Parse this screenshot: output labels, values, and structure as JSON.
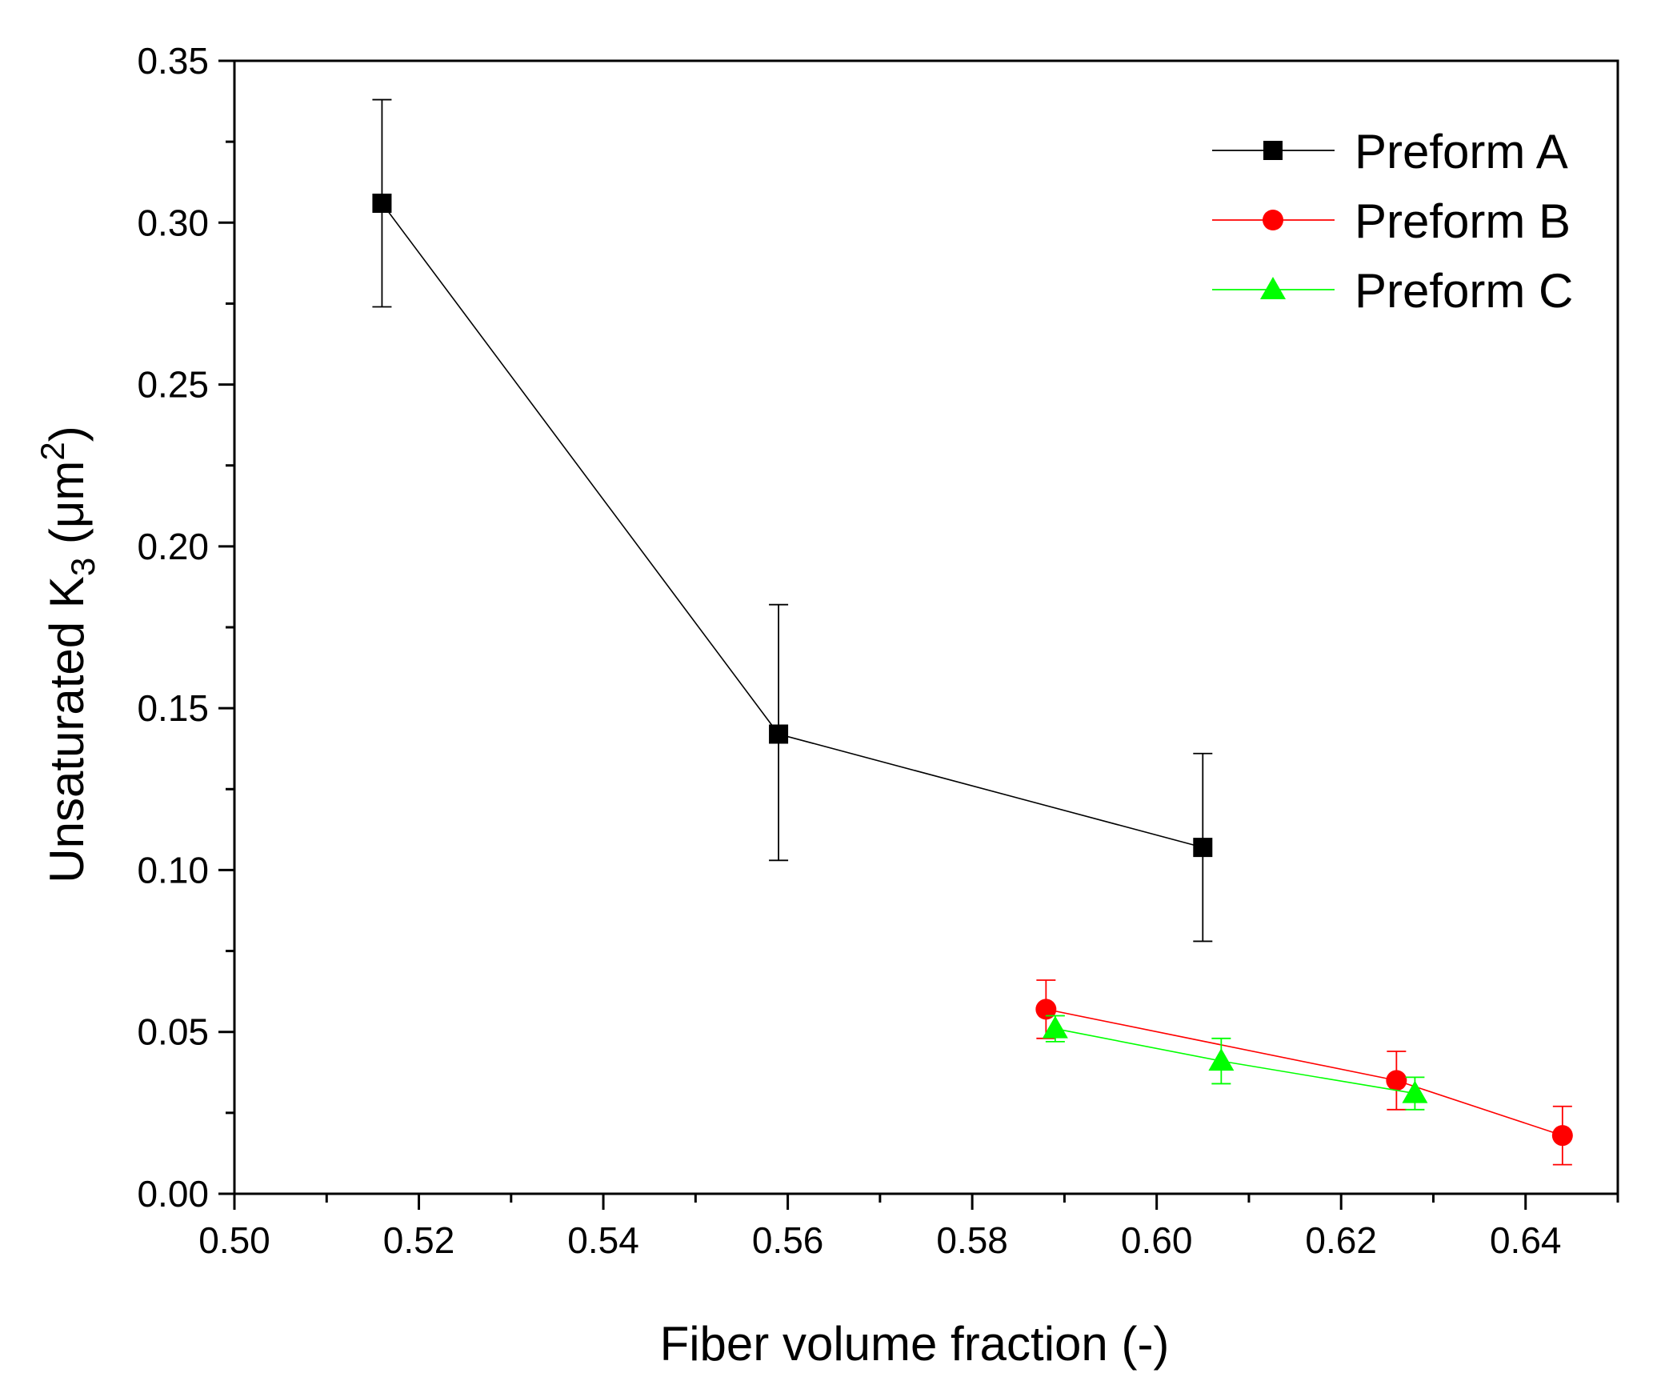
{
  "chart_data": {
    "type": "scatter",
    "title": "",
    "xlabel": "Fiber volume fraction (-)",
    "ylabel_main": "Unsaturated K",
    "ylabel_subscript": "3",
    "ylabel_unit_open": " (μm",
    "ylabel_unit_superscript": "2",
    "ylabel_unit_close": ")",
    "xlim": [
      0.5,
      0.65
    ],
    "ylim": [
      0.0,
      0.35
    ],
    "xticks_major": [
      "0.50",
      "0.52",
      "0.54",
      "0.56",
      "0.58",
      "0.60",
      "0.62",
      "0.64"
    ],
    "yticks_major": [
      "0.00",
      "0.05",
      "0.10",
      "0.15",
      "0.20",
      "0.25",
      "0.30",
      "0.35"
    ],
    "grid": false,
    "legend_position": "top-right",
    "series": [
      {
        "name": "Preform A",
        "color": "#000000",
        "marker": "square",
        "x": [
          0.516,
          0.559,
          0.605
        ],
        "y": [
          0.306,
          0.142,
          0.107
        ],
        "yerr_low": [
          0.274,
          0.103,
          0.078
        ],
        "yerr_high": [
          0.338,
          0.182,
          0.136
        ]
      },
      {
        "name": "Preform B",
        "color": "#ff0000",
        "marker": "circle",
        "x": [
          0.588,
          0.626,
          0.644
        ],
        "y": [
          0.057,
          0.035,
          0.018
        ],
        "yerr_low": [
          0.048,
          0.026,
          0.009
        ],
        "yerr_high": [
          0.066,
          0.044,
          0.027
        ]
      },
      {
        "name": "Preform C",
        "color": "#00ff00",
        "marker": "triangle",
        "x": [
          0.589,
          0.607,
          0.628
        ],
        "y": [
          0.051,
          0.041,
          0.031
        ],
        "yerr_low": [
          0.047,
          0.034,
          0.026
        ],
        "yerr_high": [
          0.055,
          0.048,
          0.036
        ]
      }
    ]
  }
}
